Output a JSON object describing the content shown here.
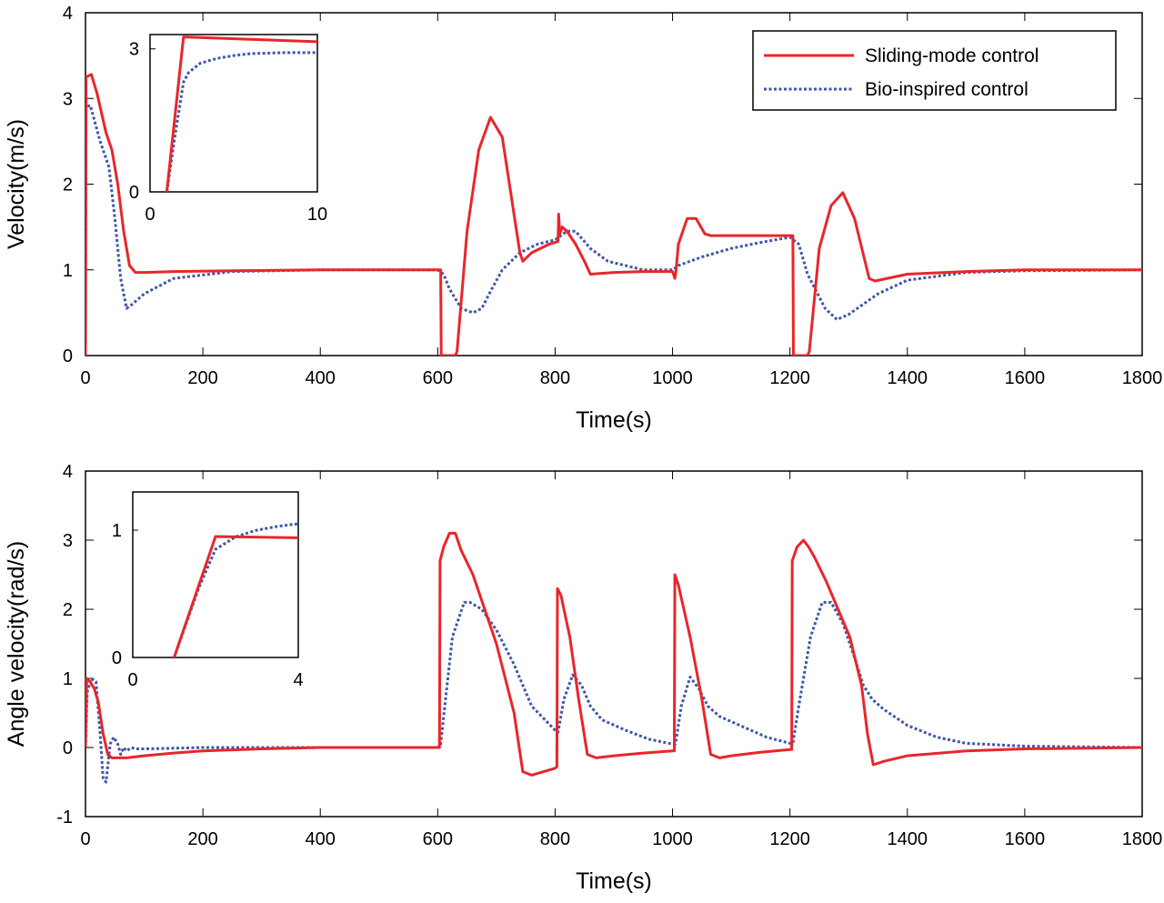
{
  "colors": {
    "smc": "#e8262b",
    "bio": "#3f57a8",
    "axis": "#000000"
  },
  "legend": {
    "entries": [
      {
        "label": "Sliding-mode control",
        "series": "smc"
      },
      {
        "label": "Bio-inspired control",
        "series": "bio"
      }
    ]
  },
  "chart_data": [
    {
      "type": "line",
      "xlabel": "Time(s)",
      "ylabel": "Velocity(m/s)",
      "xlim": [
        0,
        1800
      ],
      "ylim": [
        0,
        4
      ],
      "xticks": [
        0,
        200,
        400,
        600,
        800,
        1000,
        1200,
        1400,
        1600,
        1800
      ],
      "yticks": [
        0,
        1,
        2,
        3,
        4
      ],
      "legend_position": "top-right",
      "series": [
        {
          "name": "Sliding-mode control",
          "key": "smc",
          "x": [
            0,
            1,
            10,
            20,
            35,
            45,
            55,
            65,
            75,
            85,
            100,
            150,
            250,
            400,
            600,
            605,
            606,
            630,
            633,
            650,
            670,
            690,
            710,
            740,
            745,
            760,
            790,
            805,
            806,
            808,
            812,
            820,
            835,
            850,
            860,
            900,
            950,
            1000,
            1004,
            1006,
            1010,
            1025,
            1040,
            1055,
            1065,
            1100,
            1200,
            1205,
            1206,
            1230,
            1233,
            1250,
            1270,
            1290,
            1310,
            1335,
            1345,
            1400,
            1500,
            1600,
            1800
          ],
          "y": [
            0,
            3.25,
            3.28,
            3.05,
            2.6,
            2.4,
            2.0,
            1.45,
            1.05,
            0.97,
            0.97,
            0.98,
            0.99,
            1.0,
            1.0,
            1.0,
            0,
            0,
            0.05,
            1.45,
            2.4,
            2.78,
            2.55,
            1.2,
            1.1,
            1.2,
            1.3,
            1.33,
            1.65,
            1.42,
            1.5,
            1.45,
            1.3,
            1.1,
            0.95,
            0.97,
            0.98,
            0.98,
            0.9,
            0.99,
            1.3,
            1.6,
            1.6,
            1.42,
            1.4,
            1.4,
            1.4,
            1.4,
            0,
            0,
            0.05,
            1.25,
            1.75,
            1.9,
            1.6,
            0.9,
            0.87,
            0.95,
            0.98,
            1.0,
            1.0
          ]
        },
        {
          "name": "Bio-inspired control",
          "key": "bio",
          "x": [
            0,
            1,
            8,
            15,
            25,
            40,
            50,
            60,
            70,
            80,
            100,
            150,
            250,
            400,
            600,
            610,
            620,
            640,
            660,
            675,
            690,
            710,
            740,
            770,
            800,
            820,
            835,
            860,
            890,
            950,
            1000,
            1010,
            1050,
            1100,
            1150,
            1200,
            1215,
            1230,
            1260,
            1280,
            1300,
            1350,
            1400,
            1500,
            1600,
            1800
          ],
          "y": [
            0,
            2.9,
            2.92,
            2.75,
            2.5,
            2.2,
            1.6,
            0.9,
            0.55,
            0.6,
            0.72,
            0.9,
            0.98,
            1.0,
            1.0,
            0.95,
            0.78,
            0.55,
            0.5,
            0.55,
            0.75,
            1.0,
            1.2,
            1.3,
            1.35,
            1.45,
            1.45,
            1.25,
            1.1,
            1.0,
            1.0,
            1.05,
            1.15,
            1.25,
            1.32,
            1.38,
            1.3,
            0.95,
            0.55,
            0.42,
            0.48,
            0.72,
            0.88,
            0.97,
            0.99,
            1.0
          ]
        }
      ],
      "inset": {
        "xlim": [
          0,
          10
        ],
        "ylim": [
          0,
          3.3
        ],
        "xticks": [
          0,
          10
        ],
        "yticks": [
          0,
          3
        ],
        "series": [
          {
            "key": "smc",
            "x": [
              1,
              2,
              10
            ],
            "y": [
              0,
              3.25,
              3.15
            ]
          },
          {
            "key": "bio",
            "x": [
              1,
              1.5,
              2,
              2.3,
              3,
              4,
              5,
              6,
              8,
              10
            ],
            "y": [
              0,
              1.2,
              2.3,
              2.5,
              2.7,
              2.8,
              2.86,
              2.9,
              2.92,
              2.92
            ]
          }
        ]
      }
    },
    {
      "type": "line",
      "xlabel": "Time(s)",
      "ylabel": "Angle velocity(rad/s)",
      "xlim": [
        0,
        1800
      ],
      "ylim": [
        -1,
        4
      ],
      "xticks": [
        0,
        200,
        400,
        600,
        800,
        1000,
        1200,
        1400,
        1600,
        1800
      ],
      "yticks": [
        -1,
        0,
        1,
        2,
        3,
        4
      ],
      "series": [
        {
          "name": "Sliding-mode control",
          "key": "smc",
          "x": [
            0,
            2,
            8,
            15,
            22,
            30,
            38,
            45,
            55,
            70,
            100,
            150,
            200,
            300,
            400,
            600,
            603,
            604,
            610,
            620,
            630,
            640,
            660,
            700,
            730,
            745,
            760,
            800,
            803,
            804,
            810,
            825,
            840,
            855,
            870,
            900,
            950,
            1000,
            1003,
            1004,
            1010,
            1030,
            1050,
            1065,
            1080,
            1100,
            1150,
            1200,
            1203,
            1204,
            1212,
            1223,
            1232,
            1242,
            1262,
            1302,
            1322,
            1332,
            1342,
            1360,
            1400,
            1500,
            1600,
            1800
          ],
          "y": [
            0,
            1.0,
            0.95,
            0.85,
            0.65,
            0.2,
            -0.1,
            -0.15,
            -0.15,
            -0.15,
            -0.12,
            -0.08,
            -0.05,
            -0.02,
            0,
            0,
            0,
            2.7,
            2.9,
            3.1,
            3.1,
            2.85,
            2.5,
            1.5,
            0.5,
            -0.35,
            -0.4,
            -0.3,
            -0.28,
            2.3,
            2.2,
            1.6,
            0.7,
            -0.1,
            -0.15,
            -0.12,
            -0.08,
            -0.05,
            -0.05,
            2.5,
            2.35,
            1.6,
            0.7,
            -0.1,
            -0.15,
            -0.12,
            -0.07,
            -0.03,
            -0.03,
            2.7,
            2.9,
            3.0,
            2.9,
            2.75,
            2.4,
            1.6,
            0.9,
            0.2,
            -0.25,
            -0.2,
            -0.12,
            -0.05,
            -0.02,
            0
          ]
        },
        {
          "name": "Bio-inspired control",
          "key": "bio",
          "x": [
            0,
            3,
            10,
            18,
            25,
            30,
            35,
            42,
            48,
            55,
            60,
            65,
            70,
            78,
            85,
            100,
            150,
            200,
            400,
            600,
            605,
            612,
            625,
            645,
            655,
            675,
            700,
            730,
            760,
            800,
            805,
            815,
            830,
            845,
            860,
            880,
            920,
            960,
            1000,
            1005,
            1015,
            1030,
            1045,
            1060,
            1080,
            1120,
            1160,
            1200,
            1205,
            1215,
            1235,
            1255,
            1270,
            1290,
            1310,
            1325,
            1340,
            1360,
            1400,
            1450,
            1500,
            1600,
            1800
          ],
          "y": [
            0,
            0.8,
            1.0,
            0.95,
            0.2,
            -0.45,
            -0.5,
            0.05,
            0.15,
            0.05,
            -0.1,
            0.0,
            -0.05,
            0.0,
            -0.02,
            -0.02,
            -0.01,
            0,
            0,
            0,
            0.05,
            0.6,
            1.6,
            2.1,
            2.1,
            2.0,
            1.7,
            1.2,
            0.6,
            0.25,
            0.22,
            0.7,
            1.05,
            0.9,
            0.6,
            0.4,
            0.25,
            0.12,
            0.05,
            0.05,
            0.6,
            1.02,
            0.85,
            0.6,
            0.45,
            0.3,
            0.15,
            0.06,
            0.06,
            0.6,
            1.6,
            2.1,
            2.1,
            1.8,
            1.3,
            0.9,
            0.7,
            0.55,
            0.32,
            0.15,
            0.06,
            0.02,
            0
          ]
        }
      ],
      "inset": {
        "xlim": [
          0,
          4
        ],
        "ylim": [
          0,
          1.3
        ],
        "xticks": [
          0,
          4
        ],
        "yticks": [
          0,
          1
        ],
        "series": [
          {
            "key": "smc",
            "x": [
              1,
              2,
              4
            ],
            "y": [
              0,
              0.95,
              0.94
            ]
          },
          {
            "key": "bio",
            "x": [
              1,
              1.6,
              2,
              2.5,
              3,
              3.5,
              4
            ],
            "y": [
              0,
              0.55,
              0.85,
              0.95,
              1.0,
              1.03,
              1.05
            ]
          }
        ]
      }
    }
  ]
}
